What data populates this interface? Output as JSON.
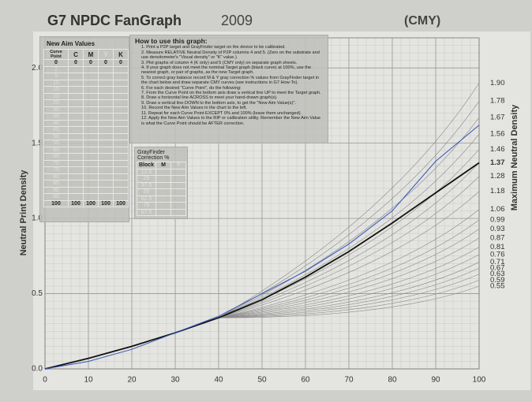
{
  "chart_data": {
    "type": "line",
    "title": "G7 NPDC FanGraph",
    "year": "2009",
    "variant": "(CMY)",
    "y_label": "Neutral Print Density",
    "y2_label": "Maximum Neutral Density",
    "x": [
      0,
      10,
      20,
      30,
      40,
      50,
      60,
      70,
      80,
      90,
      100
    ],
    "series": [
      {
        "color": "#111111",
        "values": [
          0,
          0.07,
          0.15,
          0.24,
          0.34,
          0.46,
          0.61,
          0.78,
          0.97,
          1.17,
          1.37
        ]
      },
      {
        "color": "#3355bb",
        "values": [
          0,
          0.05,
          0.13,
          0.24,
          0.35,
          0.5,
          0.65,
          0.83,
          1.05,
          1.38,
          1.62
        ]
      }
    ],
    "xlim": [
      0,
      100
    ],
    "xticks": [
      0,
      10,
      20,
      30,
      40,
      50,
      60,
      70,
      80,
      90,
      100
    ],
    "ylim": [
      0,
      2.2
    ],
    "yticks": [
      {
        "value": 0,
        "label": "0.0"
      },
      0.5,
      {
        "value": 1,
        "label": "1.0"
      },
      1.5,
      {
        "value": 2,
        "label": "2.0"
      }
    ],
    "y2lim": [
      0,
      2.2
    ],
    "y2ticks": [
      {
        "value": 1.9,
        "label": "1.90"
      },
      1.78,
      1.67,
      1.56,
      1.46,
      1.37,
      1.28,
      1.18,
      1.06,
      0.99,
      0.93,
      0.87,
      0.81,
      0.76,
      0.71,
      0.67,
      0.63,
      0.59,
      0.55
    ],
    "grid": true
  },
  "aim_table": {
    "title": "New Aim Values",
    "headers": [
      "Curve Point",
      "C",
      "M",
      "Y",
      "K"
    ],
    "first_row": [
      "0",
      "0",
      "0",
      "0",
      "0"
    ],
    "curve_points": [
      "2",
      "5",
      "10",
      "15",
      "20",
      "25",
      "30",
      "35",
      "40",
      "45",
      "50",
      "55",
      "60",
      "65",
      "70",
      "75",
      "80",
      "85",
      "90",
      "95"
    ],
    "last_row": [
      "100",
      "100",
      "100",
      "100",
      "100"
    ]
  },
  "grayfinder": {
    "title": "GrayFinder Correction %",
    "headers": [
      "Block",
      "M",
      "Y"
    ],
    "blocks": [
      "12.5",
      "25",
      "37.5",
      "50",
      "62.5",
      "75",
      "87.5"
    ]
  },
  "instructions": {
    "title": "How to use this graph:",
    "items": [
      "1. Print a P2P target and GrayFinder target on the device to be calibrated.",
      "2. Measure RELATIVE Neutral Density of P2P columns 4 and 5. (Zero on the substrate and use densitometer's \"Visual density\" or \"K\" value.)",
      "3. Plot graphs of column 4 (K only) and 5 (CMY only) on separate graph sheets.",
      "4. If your graph does not meet the nominal Target graph (black curve) at 100%, use the nearest graph, or pair of graphs, as the new Target graph.",
      "5. To correct gray balance record M & Y gray correction % values from GrayFinder target in the chart below and draw separate CMY curves (see instructions in G7 How-To).",
      "6. For each desired \"Curve Point\", do the following:",
      "7. From the Curve Point on the bottom axis draw a vertical line UP to meet the Target graph.",
      "8. Draw a horizontal line ACROSS to meet your hand-drawn graph(s).",
      "9. Draw a vertical line DOWN to the bottom axis, to get the \"New Aim Value(s)\".",
      "10. Record the New Aim Values in the chart to the left.",
      "11. Repeat for each Curve Point EXCEPT 0% and 100% (leave them unchanged).",
      "12. Apply the New Aim Values to the RIP or calibration utility. Remember the New Aim Value is what the Curve Point should be AFTER correction."
    ]
  }
}
